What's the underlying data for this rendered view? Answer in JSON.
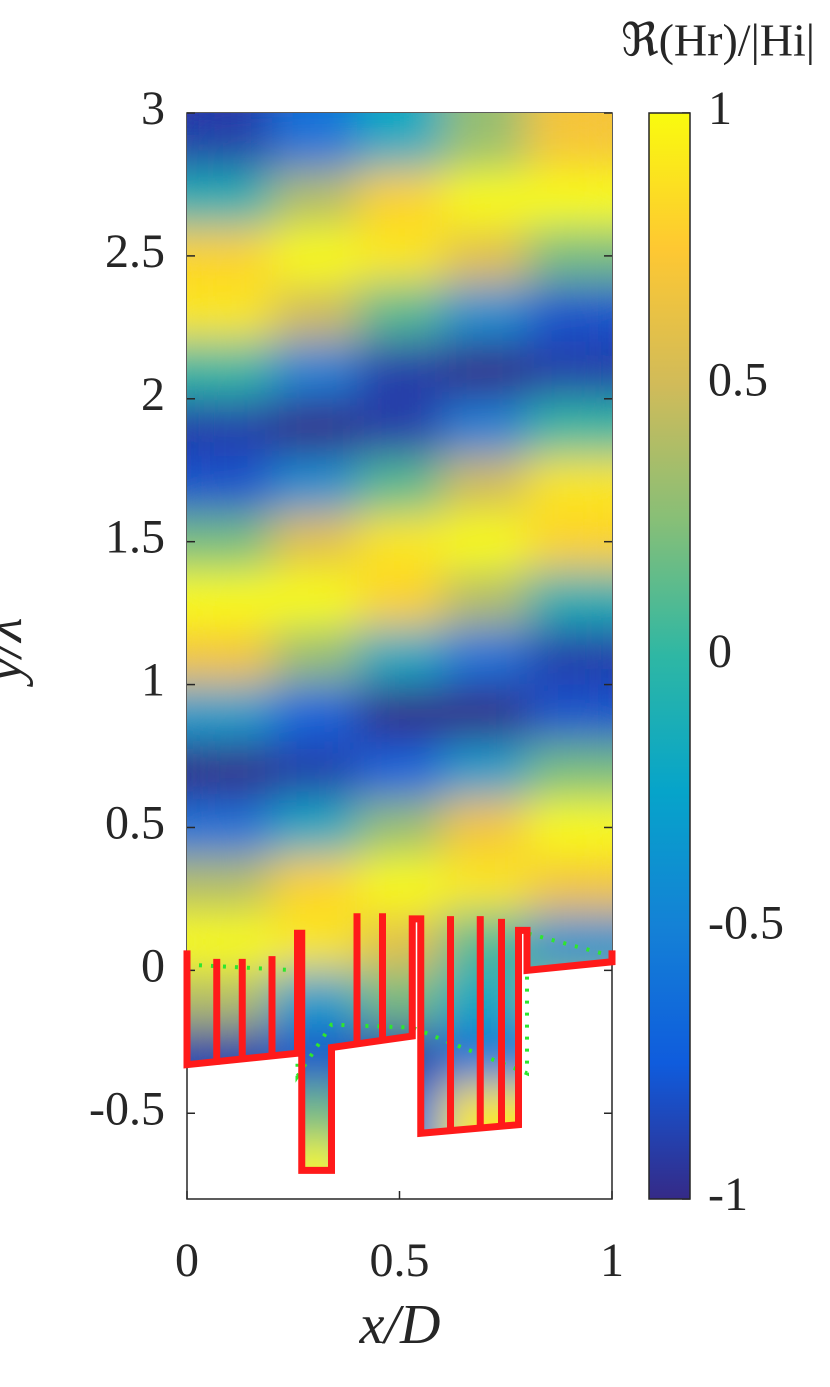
{
  "chart_data": {
    "type": "heatmap",
    "xlabel": "x/D",
    "ylabel": "y/λ",
    "colorbar_label": "ℜ(Hr)/|Hi|",
    "xlim": [
      0,
      1
    ],
    "ylim": [
      -0.8,
      3
    ],
    "xticks": [
      0,
      0.5,
      1
    ],
    "yticks": [
      -0.5,
      0,
      0.5,
      1,
      1.5,
      2,
      2.5,
      3
    ],
    "clim": [
      -1,
      1
    ],
    "cticks": [
      -1,
      -0.5,
      0,
      0.5,
      1
    ],
    "colormap": [
      "#352a87",
      "#0f5cdd",
      "#1481d6",
      "#06a4ca",
      "#2eb7a4",
      "#87bf77",
      "#d1bb59",
      "#fec832",
      "#f9fb0e"
    ],
    "x": [
      0.1,
      0.3,
      0.5,
      0.7,
      0.9
    ],
    "y": [
      2.9,
      2.7,
      2.5,
      2.3,
      2.1,
      1.9,
      1.7,
      1.5,
      1.3,
      1.1,
      0.9,
      0.7,
      0.5,
      0.3,
      0.1,
      -0.1,
      -0.3,
      -0.5,
      -0.7
    ],
    "z": [
      [
        -0.9,
        -0.6,
        -0.2,
        0.3,
        0.7
      ],
      [
        -0.1,
        0.4,
        0.8,
        1,
        1
      ],
      [
        0.8,
        1,
        0.9,
        0.6,
        0.2
      ],
      [
        0.9,
        0.5,
        0.1,
        -0.4,
        -0.8
      ],
      [
        0,
        -0.5,
        -0.9,
        -1,
        -0.9
      ],
      [
        -0.9,
        -1,
        -0.9,
        -0.5,
        0
      ],
      [
        -0.8,
        -0.4,
        0.1,
        0.5,
        0.9
      ],
      [
        0.2,
        0.6,
        0.9,
        1,
        0.8
      ],
      [
        1,
        1,
        0.8,
        0.4,
        -0.1
      ],
      [
        0.7,
        0.3,
        -0.2,
        -0.6,
        -0.9
      ],
      [
        -0.3,
        -0.7,
        -1,
        -1,
        -0.8
      ],
      [
        -1,
        -0.9,
        -0.7,
        -0.3,
        0.2
      ],
      [
        -0.6,
        -0.2,
        0.3,
        0.7,
        1
      ],
      [
        0.4,
        0.8,
        1,
        0.9,
        0.7
      ],
      [
        1,
        0.9,
        0.6,
        0.1,
        -0.4
      ],
      [
        0.4,
        -0.3,
        0.2,
        -0.2,
        0.3
      ],
      [
        -0.9,
        -0.8,
        -0.9,
        -0.6,
        -0.5
      ],
      [
        -0.6,
        0.2,
        -0.6,
        0.9,
        0.9
      ],
      [
        -0.6,
        1,
        -0.6,
        1,
        0.9
      ]
    ],
    "boundary": {
      "color": "#ff1a1a",
      "x": [
        0,
        0,
        0.26,
        0.26,
        0.27,
        0.27,
        0.34,
        0.34,
        0.53,
        0.53,
        0.55,
        0.55,
        0.78,
        0.78,
        0.8,
        0.8,
        1,
        1
      ],
      "y": [
        0.07,
        -0.33,
        -0.29,
        0.13,
        0.13,
        -0.7,
        -0.7,
        -0.27,
        -0.23,
        0.18,
        0.18,
        -0.57,
        -0.54,
        0.14,
        0.14,
        0,
        0.03,
        0.07
      ]
    },
    "fins": {
      "color": "#ff1a1a",
      "x": [
        0.07,
        0.13,
        0.2,
        0.4,
        0.46,
        0.62,
        0.69,
        0.74
      ],
      "top": [
        0.04,
        0.04,
        0.05,
        0.2,
        0.2,
        0.19,
        0.19,
        0.18
      ],
      "bottom": [
        -0.33,
        -0.32,
        -0.31,
        -0.25,
        -0.24,
        -0.57,
        -0.56,
        -0.55
      ]
    },
    "dotted": {
      "color": "#2ee62e",
      "x": [
        0,
        0.26,
        0.26,
        0.34,
        0.53,
        0.8,
        0.8,
        1
      ],
      "y": [
        0.02,
        0,
        -0.37,
        -0.19,
        -0.2,
        -0.36,
        0.13,
        0.05
      ]
    }
  }
}
